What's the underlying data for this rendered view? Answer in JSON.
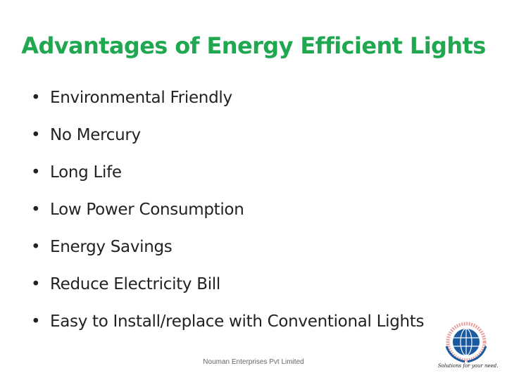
{
  "slide": {
    "title": "Advantages of Energy Efficient Lights",
    "bullets": [
      "Environmental Friendly",
      "No Mercury",
      "Long Life",
      "Low Power Consumption",
      "Energy Savings",
      "Reduce Electricity Bill",
      "Easy to Install/replace with Conventional Lights"
    ],
    "bullet_symbol": "•",
    "footer": "Nouman Enterprises Pvt Limited",
    "logo": {
      "tagline": "Solutions for your need.",
      "icon": "globe-laurel-logo"
    },
    "colors": {
      "title": "#1fa84f",
      "globe": "#1a5a9e",
      "ring_text": "#c0392b",
      "laurel": "#1a5a9e"
    }
  }
}
